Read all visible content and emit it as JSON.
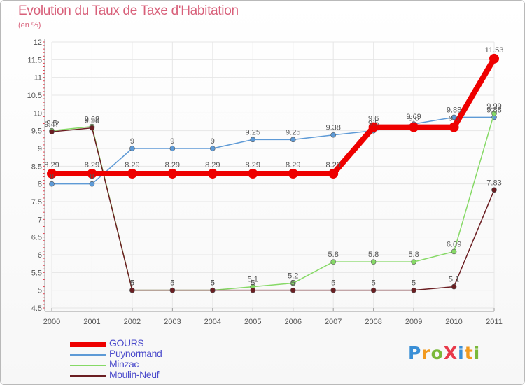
{
  "title": "Evolution du Taux de Taxe d'Habitation",
  "subtitle": "(en %)",
  "logo": {
    "letters": [
      {
        "ch": "P",
        "color": "#3a8fd6"
      },
      {
        "ch": "r",
        "color": "#f29a1f"
      },
      {
        "ch": "o",
        "color": "#7ab83a"
      },
      {
        "ch": "X",
        "color": "#e8394a"
      },
      {
        "ch": "i",
        "color": "#3a8fd6"
      },
      {
        "ch": "t",
        "color": "#f29a1f"
      },
      {
        "ch": "i",
        "color": "#7ab83a"
      }
    ]
  },
  "chart_data": {
    "type": "line",
    "title": "Evolution du Taux de Taxe d'Habitation",
    "ylabel": "(en %)",
    "x": [
      "2000",
      "2001",
      "2002",
      "2003",
      "2004",
      "2005",
      "2006",
      "2007",
      "2008",
      "2009",
      "2010",
      "2011"
    ],
    "ylim": [
      4.5,
      12
    ],
    "yticks": [
      "4.5",
      "5",
      "5.5",
      "6",
      "6.5",
      "7",
      "7.5",
      "8",
      "8.5",
      "9",
      "9.5",
      "10",
      "10.5",
      "11",
      "11.5",
      "12"
    ],
    "grid": true,
    "legend_position": "bottom-left",
    "series": [
      {
        "name": "GOURS",
        "color": "#ee0000",
        "values": [
          8.29,
          8.29,
          8.29,
          8.29,
          8.29,
          8.29,
          8.29,
          8.29,
          9.6,
          9.6,
          9.6,
          11.53
        ],
        "labels": [
          "8.29",
          "8.29",
          "8.29",
          "8.29",
          "8.29",
          "8.29",
          "8.29",
          "8.29",
          "9.6",
          "9.6",
          "9.6",
          "11.53"
        ]
      },
      {
        "name": "Puynormand",
        "color": "#5e9ad6",
        "values": [
          8,
          8,
          9,
          9,
          9,
          9.25,
          9.25,
          9.38,
          9.5,
          9.69,
          9.88,
          9.88
        ],
        "labels": [
          "8",
          "8",
          "9",
          "9",
          "9",
          "9.25",
          "9.25",
          "9.38",
          "9.5",
          "9.69",
          "9.88",
          "9.88"
        ]
      },
      {
        "name": "Minzac",
        "color": "#86d966",
        "values": [
          9.5,
          9.62,
          5,
          5,
          5,
          5.1,
          5.2,
          5.8,
          5.8,
          5.8,
          6.09,
          9.99
        ],
        "labels": [
          "9.5",
          "9.62",
          "5",
          "5",
          "5",
          "5.1",
          "5.2",
          "5.8",
          "5.8",
          "5.8",
          "6.09",
          "9.99"
        ]
      },
      {
        "name": "Moulin-Neuf",
        "color": "#6b1e22",
        "values": [
          9.47,
          9.58,
          5,
          5,
          5,
          5,
          5,
          5,
          5,
          5,
          5.1,
          7.83
        ],
        "labels": [
          "9.47",
          "9.58",
          "5",
          "5",
          "5",
          "5",
          "5",
          "5",
          "5",
          "5",
          "5.1",
          "7.83"
        ]
      }
    ]
  }
}
